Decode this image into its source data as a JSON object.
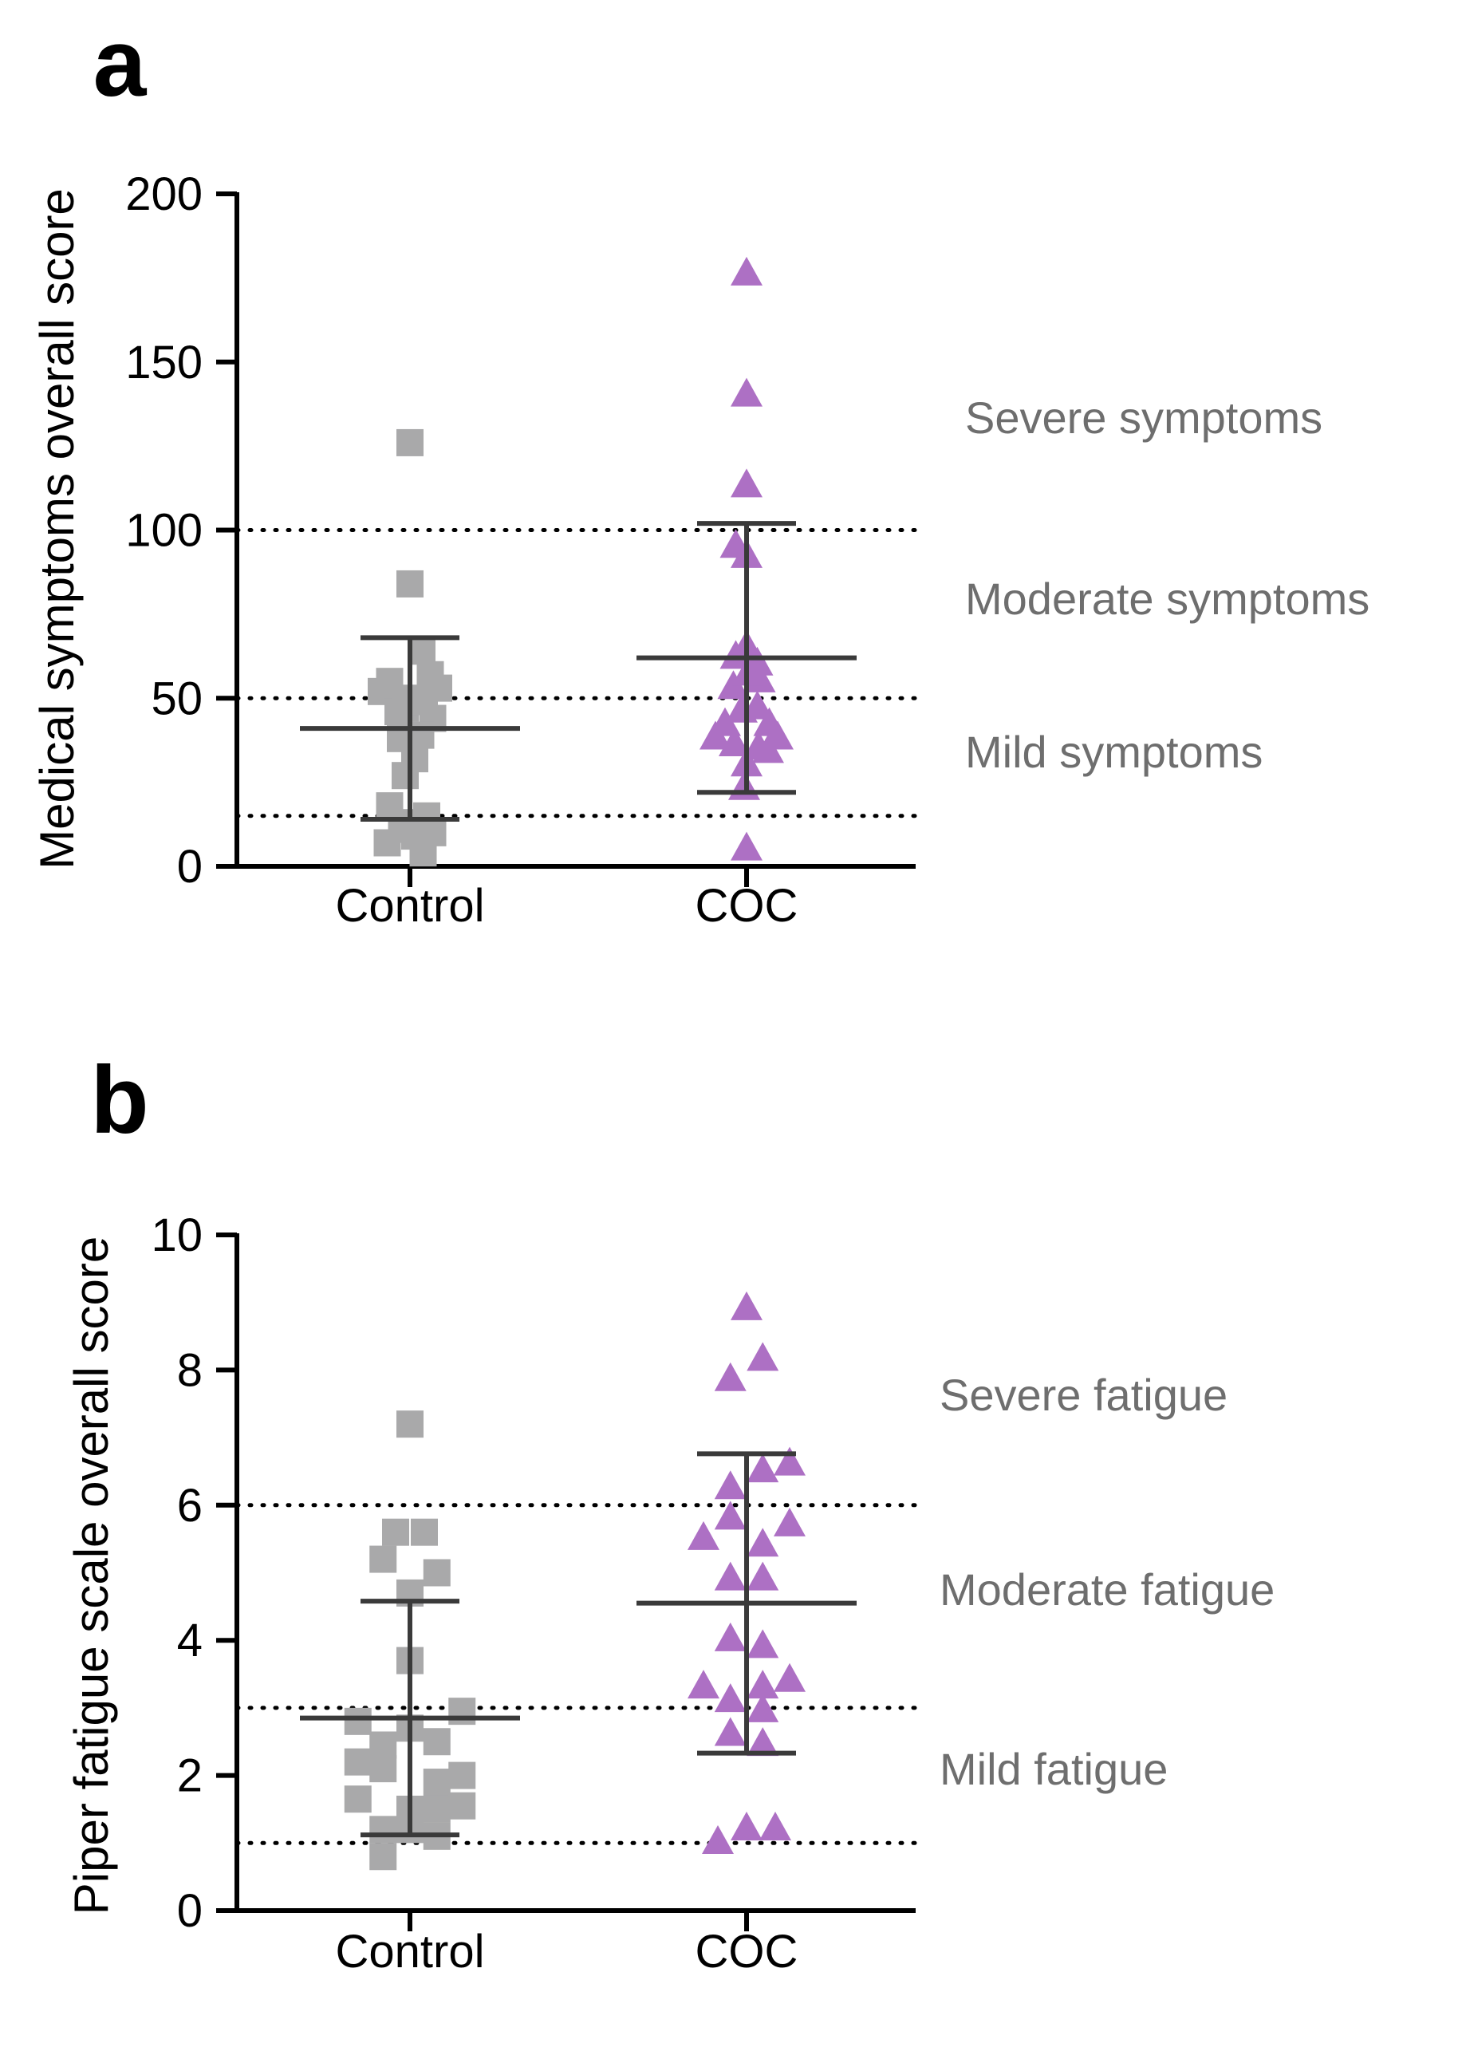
{
  "colors": {
    "control": "#a9a9aa",
    "coc": "#ad70c4",
    "axis": "#000000",
    "errorbar": "#3a3a3a",
    "zone_label": "#6e6e6e"
  },
  "chart_data": [
    {
      "panel": "a",
      "type": "scatter",
      "ylabel": "Medical symptoms overall score",
      "ylim": [
        0,
        200
      ],
      "yticks": [
        0,
        50,
        100,
        150,
        200
      ],
      "categories": [
        "Control",
        "COC"
      ],
      "thresholds": [
        15,
        50,
        100
      ],
      "zone_labels": [
        "Severe symptoms",
        "Moderate symptoms",
        "Mild symptoms"
      ],
      "series": [
        {
          "name": "Control",
          "marker": "square",
          "mean": 41,
          "sd_low": 14,
          "sd_high": 68,
          "points": [
            {
              "o": 0.0,
              "y": 126
            },
            {
              "o": 0.0,
              "y": 84
            },
            {
              "o": -1.2,
              "y": 52
            },
            {
              "o": -0.85,
              "y": 55
            },
            {
              "o": 0.5,
              "y": 64
            },
            {
              "o": 0.85,
              "y": 57
            },
            {
              "o": 1.2,
              "y": 53
            },
            {
              "o": -0.5,
              "y": 46
            },
            {
              "o": -0.2,
              "y": 47
            },
            {
              "o": 0.15,
              "y": 50
            },
            {
              "o": 0.6,
              "y": 49
            },
            {
              "o": 0.95,
              "y": 44
            },
            {
              "o": -0.4,
              "y": 38
            },
            {
              "o": 0.45,
              "y": 39
            },
            {
              "o": 0.2,
              "y": 32
            },
            {
              "o": -0.2,
              "y": 27
            },
            {
              "o": -0.85,
              "y": 18
            },
            {
              "o": -0.35,
              "y": 13
            },
            {
              "o": 0.7,
              "y": 15
            },
            {
              "o": -0.95,
              "y": 7
            },
            {
              "o": -0.1,
              "y": 11
            },
            {
              "o": 0.2,
              "y": 9
            },
            {
              "o": 0.95,
              "y": 10
            },
            {
              "o": 0.55,
              "y": 4
            }
          ]
        },
        {
          "name": "COC",
          "marker": "triangle",
          "mean": 62,
          "sd_low": 22,
          "sd_high": 102,
          "points": [
            {
              "o": 0.0,
              "y": 176
            },
            {
              "o": 0.0,
              "y": 140
            },
            {
              "o": 0.0,
              "y": 113
            },
            {
              "o": -0.45,
              "y": 95
            },
            {
              "o": 0.0,
              "y": 92
            },
            {
              "o": 0.0,
              "y": 65
            },
            {
              "o": -0.45,
              "y": 62
            },
            {
              "o": 0.45,
              "y": 60
            },
            {
              "o": -0.55,
              "y": 53
            },
            {
              "o": 0.55,
              "y": 55
            },
            {
              "o": 0.05,
              "y": 57
            },
            {
              "o": -0.2,
              "y": 46
            },
            {
              "o": 0.45,
              "y": 47
            },
            {
              "o": -1.3,
              "y": 38
            },
            {
              "o": -0.9,
              "y": 42
            },
            {
              "o": -0.5,
              "y": 36
            },
            {
              "o": 0.5,
              "y": 35
            },
            {
              "o": 0.95,
              "y": 42
            },
            {
              "o": 1.3,
              "y": 38
            },
            {
              "o": 0.9,
              "y": 34
            },
            {
              "o": 0.0,
              "y": 30
            },
            {
              "o": -0.1,
              "y": 23
            },
            {
              "o": 0.0,
              "y": 5
            }
          ]
        }
      ]
    },
    {
      "panel": "b",
      "type": "scatter",
      "ylabel": "Piper fatigue scale overall score",
      "ylim": [
        0,
        10
      ],
      "yticks": [
        0,
        2,
        4,
        6,
        8,
        10
      ],
      "categories": [
        "Control",
        "COC"
      ],
      "thresholds": [
        1,
        3,
        6
      ],
      "zone_labels": [
        "Severe fatigue",
        "Moderate fatigue",
        "Mild fatigue"
      ],
      "series": [
        {
          "name": "Control",
          "marker": "square",
          "mean": 2.85,
          "sd_low": 1.12,
          "sd_high": 4.58,
          "points": [
            {
              "o": 0.0,
              "y": 7.2
            },
            {
              "o": -0.4,
              "y": 5.6
            },
            {
              "o": 0.4,
              "y": 5.6
            },
            {
              "o": -0.75,
              "y": 5.2
            },
            {
              "o": 0.75,
              "y": 5.0
            },
            {
              "o": 0.0,
              "y": 4.7
            },
            {
              "o": 0.0,
              "y": 3.7
            },
            {
              "o": 1.45,
              "y": 2.95
            },
            {
              "o": -1.45,
              "y": 2.8
            },
            {
              "o": -0.75,
              "y": 2.45
            },
            {
              "o": 0.0,
              "y": 2.7
            },
            {
              "o": 0.75,
              "y": 2.5
            },
            {
              "o": -1.45,
              "y": 2.2
            },
            {
              "o": -0.75,
              "y": 2.1
            },
            {
              "o": 0.75,
              "y": 1.9
            },
            {
              "o": 1.45,
              "y": 2.0
            },
            {
              "o": -1.45,
              "y": 1.65
            },
            {
              "o": 0.0,
              "y": 1.5
            },
            {
              "o": 0.75,
              "y": 1.5
            },
            {
              "o": 1.45,
              "y": 1.55
            },
            {
              "o": -0.75,
              "y": 1.2
            },
            {
              "o": 0.0,
              "y": 1.2
            },
            {
              "o": 0.75,
              "y": 1.1
            },
            {
              "o": -0.75,
              "y": 0.8
            }
          ]
        },
        {
          "name": "COC",
          "marker": "triangle",
          "mean": 4.55,
          "sd_low": 2.33,
          "sd_high": 6.76,
          "points": [
            {
              "o": 0.0,
              "y": 8.9
            },
            {
              "o": 0.45,
              "y": 8.15
            },
            {
              "o": -0.45,
              "y": 7.85
            },
            {
              "o": 1.2,
              "y": 6.6
            },
            {
              "o": 0.45,
              "y": 6.5
            },
            {
              "o": -0.45,
              "y": 6.25
            },
            {
              "o": -0.45,
              "y": 5.8
            },
            {
              "o": 1.2,
              "y": 5.7
            },
            {
              "o": -1.2,
              "y": 5.5
            },
            {
              "o": 0.45,
              "y": 5.4
            },
            {
              "o": -0.45,
              "y": 4.9
            },
            {
              "o": 0.45,
              "y": 4.9
            },
            {
              "o": -0.45,
              "y": 4.0
            },
            {
              "o": 0.45,
              "y": 3.9
            },
            {
              "o": 1.2,
              "y": 3.4
            },
            {
              "o": -1.2,
              "y": 3.3
            },
            {
              "o": 0.45,
              "y": 3.3
            },
            {
              "o": -0.45,
              "y": 3.1
            },
            {
              "o": 0.45,
              "y": 2.95
            },
            {
              "o": -0.45,
              "y": 2.6
            },
            {
              "o": 0.45,
              "y": 2.45
            },
            {
              "o": 0.0,
              "y": 1.2
            },
            {
              "o": 0.8,
              "y": 1.2
            },
            {
              "o": -0.8,
              "y": 1.0
            }
          ]
        }
      ]
    }
  ]
}
